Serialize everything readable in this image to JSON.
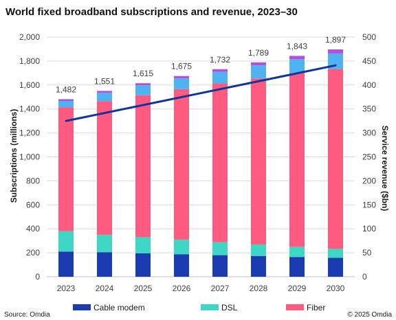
{
  "chart_data": {
    "type": "bar",
    "title": "World fixed broadband subscriptions  and revenue, 2023–30",
    "categories": [
      "2023",
      "2024",
      "2025",
      "2026",
      "2027",
      "2028",
      "2029",
      "2030"
    ],
    "series": [
      {
        "name": "Cable modem",
        "color": "#1a3cb0",
        "values": [
          210,
          205,
          195,
          188,
          180,
          172,
          165,
          158
        ]
      },
      {
        "name": "DSL",
        "color": "#3ed6c4",
        "values": [
          170,
          145,
          135,
          122,
          108,
          97,
          85,
          75
        ]
      },
      {
        "name": "Fiber",
        "color": "#ff5a80",
        "values": [
          1035,
          1115,
          1185,
          1255,
          1325,
          1385,
          1450,
          1500
        ]
      },
      {
        "name": "",
        "color": "#4fb3f2",
        "values": [
          52,
          70,
          83,
          90,
          97,
          110,
          115,
          130
        ]
      },
      {
        "name": "",
        "color": "#b44fe0",
        "values": [
          15,
          16,
          17,
          20,
          22,
          25,
          28,
          34
        ]
      }
    ],
    "totals": [
      "1,482",
      "1,551",
      "1,615",
      "1,675",
      "1,732",
      "1,789",
      "1,843",
      "1,897"
    ],
    "line_series": {
      "name": "Service revenue",
      "color": "#10349a",
      "start": 325,
      "end": 441
    },
    "ylabel": "Subscriptions (millions)",
    "y2label": "Service revenue ($bn)",
    "ylim": [
      0,
      2000
    ],
    "y2lim": [
      0,
      500
    ],
    "yticks": [
      "0",
      "200",
      "400",
      "600",
      "800",
      "1,000",
      "1,200",
      "1,400",
      "1,600",
      "1,800",
      "2,000"
    ],
    "y2ticks": [
      "0",
      "50",
      "100",
      "150",
      "200",
      "250",
      "300",
      "350",
      "400",
      "450",
      "500"
    ],
    "grid": true,
    "legend_position": "bottom",
    "legend": [
      "Cable modem",
      "DSL",
      "Fiber"
    ],
    "source": "Source: Omdia",
    "copyright": "© 2025 Omdia"
  }
}
